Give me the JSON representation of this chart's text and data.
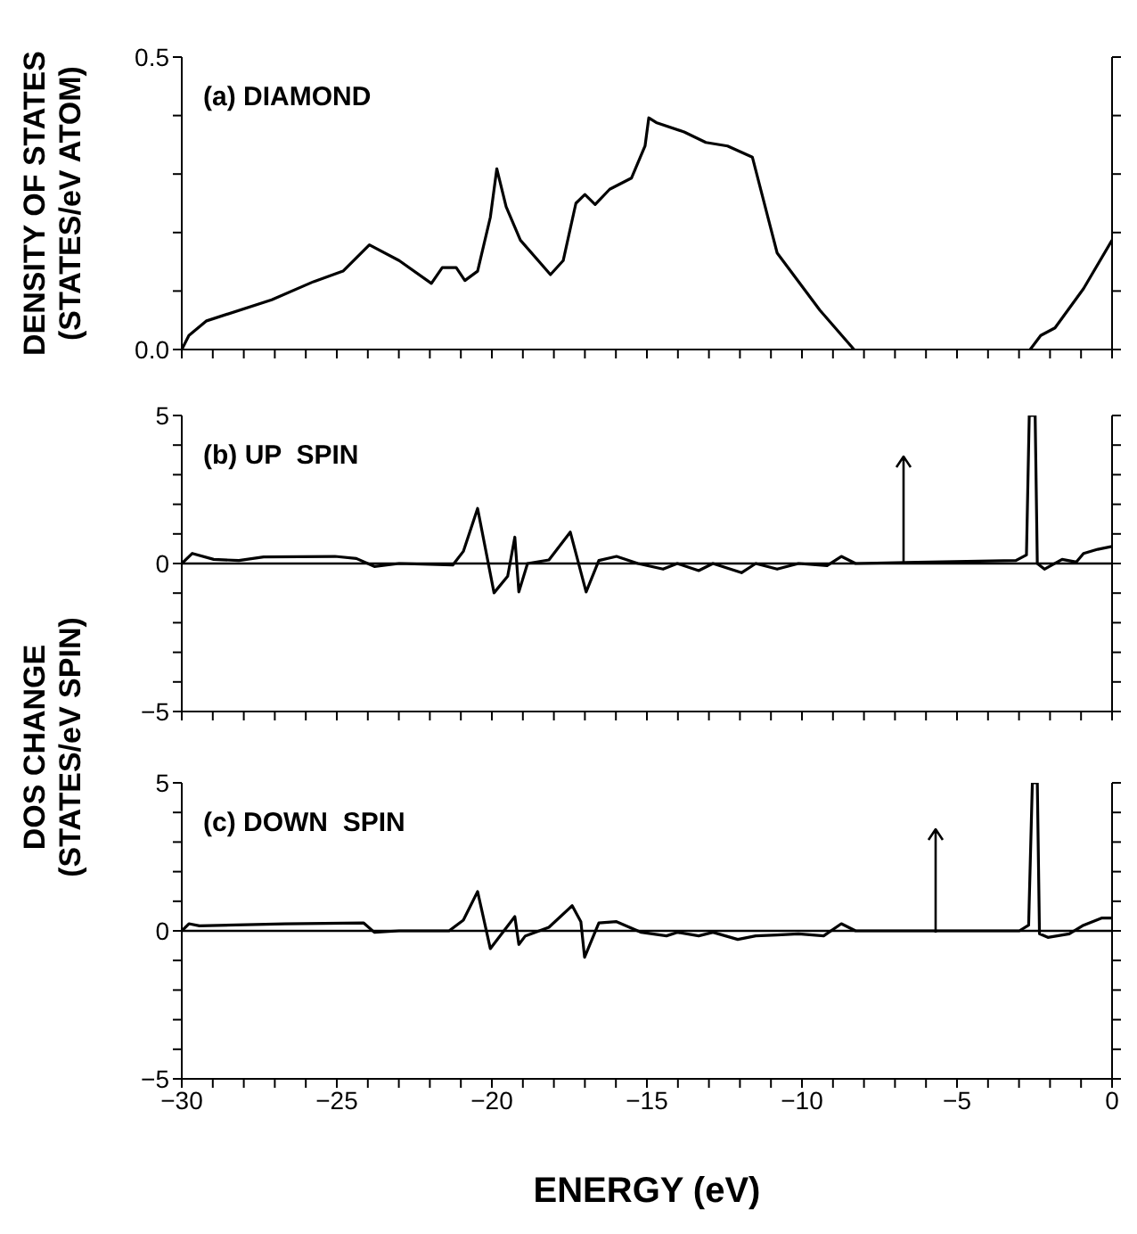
{
  "chart_data": [
    {
      "type": "line",
      "title": "(a) DIAMOND",
      "ylabel": "DENSITY OF STATES\n(STATES/eV ATOM)",
      "xlim": [
        -30,
        0
      ],
      "ylim": [
        0,
        0.5
      ],
      "tick_labels": "y",
      "marker": "none",
      "line_style": "solid",
      "xticks": [
        {
          "value": -30,
          "label": null
        },
        {
          "value": -29,
          "label": null
        },
        {
          "value": -28,
          "label": null
        },
        {
          "value": -27,
          "label": null
        },
        {
          "value": -26,
          "label": null
        },
        {
          "value": -25,
          "label": null
        },
        {
          "value": -24,
          "label": null
        },
        {
          "value": -23,
          "label": null
        },
        {
          "value": -22,
          "label": null
        },
        {
          "value": -21,
          "label": null
        },
        {
          "value": -20,
          "label": null
        },
        {
          "value": -19,
          "label": null
        },
        {
          "value": -18,
          "label": null
        },
        {
          "value": -17,
          "label": null
        },
        {
          "value": -16,
          "label": null
        },
        {
          "value": -15,
          "label": null
        },
        {
          "value": -14,
          "label": null
        },
        {
          "value": -13,
          "label": null
        },
        {
          "value": -12,
          "label": null
        },
        {
          "value": -11,
          "label": null
        },
        {
          "value": -10,
          "label": null
        },
        {
          "value": -9,
          "label": null
        },
        {
          "value": -8,
          "label": null
        },
        {
          "value": -7,
          "label": null
        },
        {
          "value": -6,
          "label": null
        },
        {
          "value": -5,
          "label": null
        },
        {
          "value": -4,
          "label": null
        },
        {
          "value": -3,
          "label": null
        },
        {
          "value": -2,
          "label": null
        },
        {
          "value": -1,
          "label": null
        },
        {
          "value": 0,
          "label": null
        }
      ],
      "yticks": [
        {
          "value": 0,
          "label": "0.0"
        },
        {
          "value": 0.1,
          "label": null
        },
        {
          "value": 0.2,
          "label": null
        },
        {
          "value": 0.3,
          "label": null
        },
        {
          "value": 0.4,
          "label": null
        },
        {
          "value": 0.5,
          "label": "0.5"
        }
      ],
      "series": [
        {
          "color": "#000000",
          "x": [
            -30,
            -29.77,
            -29.2,
            -27.1,
            -25.75,
            -24.8,
            -23.95,
            -22.99,
            -21.95,
            -21.6,
            -21.15,
            -20.87,
            -20.46,
            -20.05,
            -19.84,
            -19.54,
            -19.08,
            -18.11,
            -17.7,
            -17.29,
            -17.0,
            -16.67,
            -16.2,
            -15.5,
            -15.06,
            -14.94,
            -14.7,
            -13.8,
            -13.1,
            -12.4,
            -11.6,
            -10.8,
            -9.42,
            -8.32,
            -5.5,
            -2.64,
            -2.3,
            -1.84,
            -0.92,
            0
          ],
          "values": [
            0,
            0.024,
            0.049,
            0.085,
            0.116,
            0.134,
            0.179,
            0.152,
            0.113,
            0.14,
            0.14,
            0.118,
            0.134,
            0.226,
            0.309,
            0.244,
            0.187,
            0.128,
            0.152,
            0.25,
            0.265,
            0.248,
            0.274,
            0.293,
            0.348,
            0.396,
            0.388,
            0.372,
            0.354,
            0.348,
            0.329,
            0.165,
            0.067,
            0,
            null,
            0,
            0.024,
            0.037,
            0.104,
            0.187
          ]
        }
      ]
    },
    {
      "type": "line",
      "title": "(b) UP  SPIN",
      "ylabel": "DOS CHANGE\n(STATES/eV SPIN)",
      "xlim": [
        -30,
        0
      ],
      "ylim": [
        -5,
        5
      ],
      "tick_labels": "y",
      "marker": "none",
      "line_style": "solid",
      "xticks": [
        {
          "value": -30,
          "label": null
        },
        {
          "value": -29,
          "label": null
        },
        {
          "value": -28,
          "label": null
        },
        {
          "value": -27,
          "label": null
        },
        {
          "value": -26,
          "label": null
        },
        {
          "value": -25,
          "label": null
        },
        {
          "value": -24,
          "label": null
        },
        {
          "value": -23,
          "label": null
        },
        {
          "value": -22,
          "label": null
        },
        {
          "value": -21,
          "label": null
        },
        {
          "value": -20,
          "label": null
        },
        {
          "value": -19,
          "label": null
        },
        {
          "value": -18,
          "label": null
        },
        {
          "value": -17,
          "label": null
        },
        {
          "value": -16,
          "label": null
        },
        {
          "value": -15,
          "label": null
        },
        {
          "value": -14,
          "label": null
        },
        {
          "value": -13,
          "label": null
        },
        {
          "value": -12,
          "label": null
        },
        {
          "value": -11,
          "label": null
        },
        {
          "value": -10,
          "label": null
        },
        {
          "value": -9,
          "label": null
        },
        {
          "value": -8,
          "label": null
        },
        {
          "value": -7,
          "label": null
        },
        {
          "value": -6,
          "label": null
        },
        {
          "value": -5,
          "label": null
        },
        {
          "value": -4,
          "label": null
        },
        {
          "value": -3,
          "label": null
        },
        {
          "value": -2,
          "label": null
        },
        {
          "value": -1,
          "label": null
        },
        {
          "value": 0,
          "label": null
        }
      ],
      "yticks": [
        {
          "value": -5,
          "label": "−5"
        },
        {
          "value": -4,
          "label": null
        },
        {
          "value": -3,
          "label": null
        },
        {
          "value": -2,
          "label": null
        },
        {
          "value": -1,
          "label": null
        },
        {
          "value": 0,
          "label": "0"
        },
        {
          "value": 1,
          "label": null
        },
        {
          "value": 2,
          "label": null
        },
        {
          "value": 3,
          "label": null
        },
        {
          "value": 4,
          "label": null
        },
        {
          "value": 5,
          "label": "5"
        }
      ],
      "ref_lines": [
        {
          "axis": "y",
          "value": 0,
          "label": null,
          "color": "#000000"
        }
      ],
      "series": [
        {
          "color": "#000000",
          "x": [
            -30,
            -29.66,
            -28.97,
            -28.16,
            -27.36,
            -25.06,
            -24.37,
            -23.79,
            -22.99,
            -21.26,
            -20.92,
            -20.46,
            -19.93,
            -19.49,
            -19.26,
            -19.13,
            -18.85,
            -18.16,
            -17.47,
            -16.96,
            -16.55,
            -15.98,
            -15.29,
            -14.48,
            -14.02,
            -13.33,
            -12.87,
            -11.95,
            -11.49,
            -10.8,
            -10.11,
            -9.19,
            -8.73,
            -8.27,
            -3.1,
            -2.76,
            -2.67,
            -2.48,
            -2.41,
            -2.18,
            -1.61,
            -1.15,
            -0.92,
            -0.46,
            0
          ],
          "values": [
            0,
            0.34,
            0.14,
            0.1,
            0.22,
            0.24,
            0.17,
            -0.1,
            0,
            -0.05,
            0.41,
            1.86,
            -0.99,
            -0.43,
            0.89,
            -0.96,
            0,
            0.12,
            1.06,
            -0.96,
            0.1,
            0.24,
            0,
            -0.19,
            0,
            -0.24,
            0,
            -0.31,
            0,
            -0.19,
            0,
            -0.07,
            0.24,
            0,
            0.1,
            0.29,
            5,
            5,
            0,
            -0.19,
            0.14,
            0.05,
            0.34,
            0.48,
            0.58
          ]
        }
      ]
    },
    {
      "type": "line",
      "title": "(c) DOWN  SPIN",
      "xlabel": "ENERGY (eV)",
      "xlim": [
        -30,
        0
      ],
      "ylim": [
        -5,
        5
      ],
      "marker": "none",
      "line_style": "solid",
      "xticks": [
        {
          "value": -30,
          "label": "−30"
        },
        {
          "value": -29,
          "label": null
        },
        {
          "value": -28,
          "label": null
        },
        {
          "value": -27,
          "label": null
        },
        {
          "value": -26,
          "label": null
        },
        {
          "value": -25,
          "label": "−25"
        },
        {
          "value": -24,
          "label": null
        },
        {
          "value": -23,
          "label": null
        },
        {
          "value": -22,
          "label": null
        },
        {
          "value": -21,
          "label": null
        },
        {
          "value": -20,
          "label": "−20"
        },
        {
          "value": -19,
          "label": null
        },
        {
          "value": -18,
          "label": null
        },
        {
          "value": -17,
          "label": null
        },
        {
          "value": -16,
          "label": null
        },
        {
          "value": -15,
          "label": "−15"
        },
        {
          "value": -14,
          "label": null
        },
        {
          "value": -13,
          "label": null
        },
        {
          "value": -12,
          "label": null
        },
        {
          "value": -11,
          "label": null
        },
        {
          "value": -10,
          "label": "−10"
        },
        {
          "value": -9,
          "label": null
        },
        {
          "value": -8,
          "label": null
        },
        {
          "value": -7,
          "label": null
        },
        {
          "value": -6,
          "label": null
        },
        {
          "value": -5,
          "label": "−5"
        },
        {
          "value": -4,
          "label": null
        },
        {
          "value": -3,
          "label": null
        },
        {
          "value": -2,
          "label": null
        },
        {
          "value": -1,
          "label": null
        },
        0
      ],
      "yticks": [
        {
          "value": -5,
          "label": "−5"
        },
        {
          "value": -4,
          "label": null
        },
        {
          "value": -3,
          "label": null
        },
        {
          "value": -2,
          "label": null
        },
        {
          "value": -1,
          "label": null
        },
        {
          "value": 0,
          "label": "0"
        },
        {
          "value": 1,
          "label": null
        },
        {
          "value": 2,
          "label": null
        },
        {
          "value": 3,
          "label": null
        },
        {
          "value": 4,
          "label": null
        },
        {
          "value": 5,
          "label": "5"
        }
      ],
      "ref_lines": [
        {
          "axis": "y",
          "value": 0,
          "label": null,
          "color": "#000000"
        }
      ],
      "series": [
        {
          "color": "#000000",
          "x": [
            -30,
            -29.77,
            -29.43,
            -26.67,
            -24.14,
            -23.79,
            -22.99,
            -21.38,
            -20.92,
            -20.46,
            -20.05,
            -19.26,
            -19.13,
            -18.92,
            -18.16,
            -17.41,
            -17.13,
            -17.01,
            -16.55,
            -15.98,
            -15.18,
            -14.37,
            -14.02,
            -13.33,
            -12.87,
            -12.07,
            -11.49,
            -10.8,
            -10.11,
            -9.3,
            -8.73,
            -8.27,
            -2.99,
            -2.69,
            -2.57,
            -2.41,
            -2.34,
            -2.07,
            -1.38,
            -0.92,
            -0.34,
            0
          ],
          "values": [
            0,
            0.24,
            0.17,
            0.24,
            0.27,
            -0.05,
            0,
            0,
            0.36,
            1.33,
            -0.6,
            0.48,
            -0.46,
            -0.17,
            0.12,
            0.85,
            0.31,
            -0.89,
            0.27,
            0.31,
            -0.05,
            -0.17,
            -0.05,
            -0.17,
            -0.05,
            -0.29,
            -0.17,
            -0.14,
            -0.1,
            -0.17,
            0.24,
            0,
            0,
            0.19,
            5,
            5,
            -0.1,
            -0.22,
            -0.1,
            0.19,
            0.43,
            0.43
          ]
        }
      ]
    }
  ]
}
